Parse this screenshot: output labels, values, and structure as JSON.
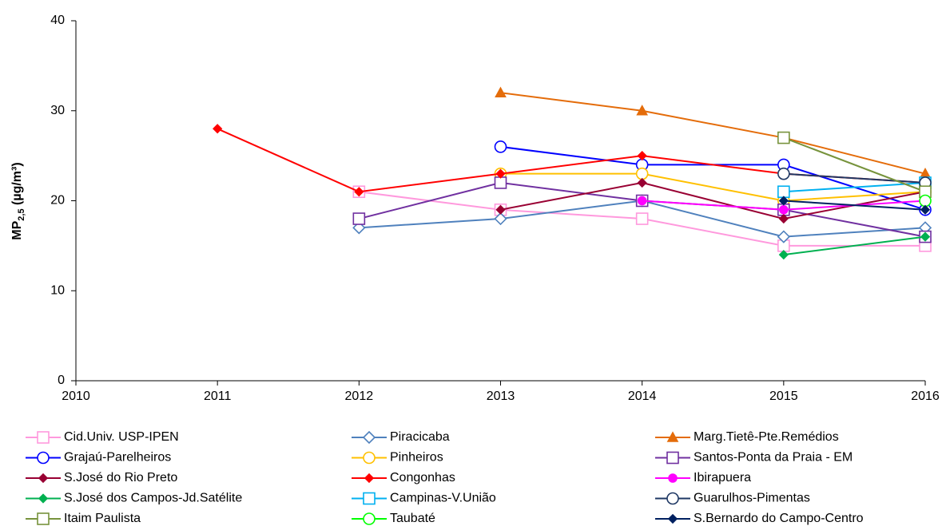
{
  "chart_data": {
    "type": "line",
    "y_label": "MP",
    "y_label_subscript": "2,5",
    "y_label_unit": "(µg/m³)",
    "x": [
      2010,
      2011,
      2012,
      2013,
      2014,
      2015,
      2016
    ],
    "xlim": [
      2010,
      2016
    ],
    "xticks": [
      2010,
      2011,
      2012,
      2013,
      2014,
      2015,
      2016
    ],
    "ylim": [
      0,
      40
    ],
    "yticks": [
      0,
      10,
      20,
      30,
      40
    ],
    "grid": false,
    "legend": "bottom",
    "series": [
      {
        "name": "Cid.Univ. USP-IPEN",
        "color": "#ff99dd",
        "marker": "square",
        "filled": false,
        "values": [
          null,
          null,
          21,
          19,
          18,
          15,
          15
        ]
      },
      {
        "name": "Piracicaba",
        "color": "#4f81bd",
        "marker": "diamond",
        "filled": false,
        "values": [
          null,
          null,
          17,
          18,
          20,
          16,
          17
        ]
      },
      {
        "name": "Marg.Tietê-Pte.Remédios",
        "color": "#e46c0a",
        "marker": "triangle",
        "filled": true,
        "values": [
          null,
          null,
          null,
          32,
          30,
          27,
          23
        ]
      },
      {
        "name": "Grajaú-Parelheiros",
        "color": "#0000ff",
        "marker": "circle",
        "filled": false,
        "values": [
          null,
          null,
          null,
          26,
          24,
          24,
          19
        ]
      },
      {
        "name": "Pinheiros",
        "color": "#ffc000",
        "marker": "circle",
        "filled": false,
        "values": [
          null,
          null,
          null,
          23,
          23,
          20,
          21
        ]
      },
      {
        "name": "Santos-Ponta da Praia - EM",
        "color": "#7030a0",
        "marker": "square",
        "filled": false,
        "values": [
          null,
          null,
          18,
          22,
          20,
          19,
          16
        ]
      },
      {
        "name": "S.José do Rio Preto",
        "color": "#990033",
        "marker": "diamond",
        "filled": true,
        "values": [
          null,
          null,
          null,
          19,
          22,
          18,
          21
        ]
      },
      {
        "name": "Congonhas",
        "color": "#ff0000",
        "marker": "diamond",
        "filled": true,
        "values": [
          null,
          28,
          21,
          23,
          25,
          23,
          22
        ]
      },
      {
        "name": "Ibirapuera",
        "color": "#ff00ff",
        "marker": "circle",
        "filled": true,
        "values": [
          null,
          null,
          null,
          null,
          20,
          19,
          20
        ]
      },
      {
        "name": "S.José dos Campos-Jd.Satélite",
        "color": "#00b050",
        "marker": "diamond",
        "filled": true,
        "values": [
          null,
          null,
          null,
          null,
          null,
          14,
          16
        ]
      },
      {
        "name": "Campinas-V.União",
        "color": "#00b0f0",
        "marker": "square",
        "filled": false,
        "values": [
          null,
          null,
          null,
          null,
          null,
          21,
          22
        ]
      },
      {
        "name": "Guarulhos-Pimentas",
        "color": "#1f3864",
        "marker": "circle",
        "filled": false,
        "values": [
          null,
          null,
          null,
          null,
          null,
          23,
          22
        ]
      },
      {
        "name": "Itaim Paulista",
        "color": "#77933c",
        "marker": "square",
        "filled": false,
        "values": [
          null,
          null,
          null,
          null,
          null,
          27,
          21
        ]
      },
      {
        "name": "Taubaté",
        "color": "#00ff00",
        "marker": "circle",
        "filled": false,
        "values": [
          null,
          null,
          null,
          null,
          null,
          null,
          20
        ]
      },
      {
        "name": "S.Bernardo do Campo-Centro",
        "color": "#002060",
        "marker": "diamond",
        "filled": true,
        "values": [
          null,
          null,
          null,
          null,
          null,
          20,
          19
        ]
      }
    ]
  }
}
